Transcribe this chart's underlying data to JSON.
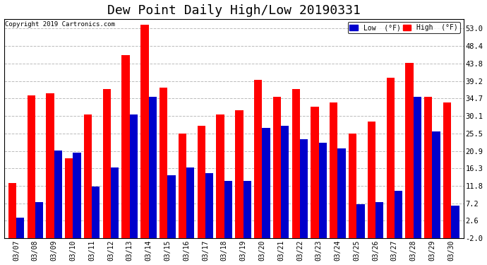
{
  "title": "Dew Point Daily High/Low 20190331",
  "copyright": "Copyright 2019 Cartronics.com",
  "dates": [
    "03/07",
    "03/08",
    "03/09",
    "03/10",
    "03/11",
    "03/12",
    "03/13",
    "03/14",
    "03/15",
    "03/16",
    "03/17",
    "03/18",
    "03/19",
    "03/20",
    "03/21",
    "03/22",
    "03/23",
    "03/24",
    "03/25",
    "03/26",
    "03/27",
    "03/28",
    "03/29",
    "03/30"
  ],
  "high": [
    12.5,
    35.5,
    36.0,
    19.0,
    30.5,
    37.0,
    46.0,
    54.0,
    37.5,
    25.5,
    27.5,
    30.5,
    31.5,
    39.5,
    35.0,
    37.0,
    32.5,
    33.5,
    25.5,
    28.5,
    40.0,
    44.0,
    35.0,
    33.5
  ],
  "low": [
    3.5,
    7.5,
    21.0,
    20.5,
    11.5,
    16.5,
    30.5,
    35.0,
    14.5,
    16.5,
    15.0,
    13.0,
    13.0,
    27.0,
    27.5,
    24.0,
    23.0,
    21.5,
    7.0,
    7.5,
    10.5,
    35.0,
    26.0,
    6.5
  ],
  "ylim": [
    -2.0,
    55.5
  ],
  "yticks": [
    -2.0,
    2.6,
    7.2,
    11.8,
    16.3,
    20.9,
    25.5,
    30.1,
    34.7,
    39.2,
    43.8,
    48.4,
    53.0
  ],
  "ytick_labels": [
    "-2.0",
    "2.6",
    "7.2",
    "11.8",
    "16.3",
    "20.9",
    "25.5",
    "30.1",
    "34.7",
    "39.2",
    "43.8",
    "48.4",
    "53.0"
  ],
  "bar_width": 0.42,
  "high_color": "#ff0000",
  "low_color": "#0000cc",
  "bg_color": "#ffffff",
  "grid_color": "#bbbbbb",
  "title_fontsize": 13,
  "legend_low_label": "Low  (°F)",
  "legend_high_label": "High  (°F)"
}
